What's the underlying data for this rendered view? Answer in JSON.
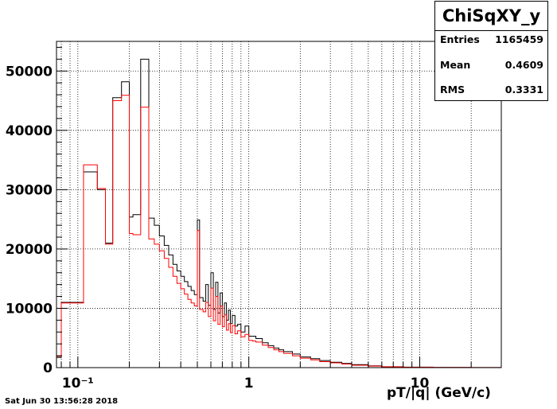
{
  "stats": {
    "title": "ChiSqXY_y",
    "rows": [
      {
        "label": "Entries",
        "value": "1165459"
      },
      {
        "label": "Mean",
        "value": "0.4609"
      },
      {
        "label": "RMS",
        "value": "0.3331"
      }
    ]
  },
  "footer_text": "Sat Jun 30 13:56:28 2018",
  "chart_data": {
    "type": "line",
    "xlabel": "pT/|q| (GeV/c)",
    "ylabel": "",
    "xscale": "log",
    "xlim": [
      0.075,
      30
    ],
    "ylim": [
      0,
      55000
    ],
    "yticks": [
      0,
      10000,
      20000,
      30000,
      40000,
      50000
    ],
    "ytick_labels": [
      "0",
      "10000",
      "20000",
      "30000",
      "40000",
      "50000"
    ],
    "xticks": [
      0.1,
      1,
      10
    ],
    "xtick_labels": [
      "10⁻¹",
      "1",
      "10"
    ],
    "grid": true,
    "series": [
      {
        "color": "#000000",
        "points": [
          [
            0.075,
            1700
          ],
          [
            0.08,
            11000
          ],
          [
            0.1,
            11000
          ],
          [
            0.108,
            33000
          ],
          [
            0.12,
            33000
          ],
          [
            0.13,
            30000
          ],
          [
            0.14,
            30000
          ],
          [
            0.145,
            21000
          ],
          [
            0.15,
            21000
          ],
          [
            0.16,
            45500
          ],
          [
            0.175,
            45500
          ],
          [
            0.18,
            48200
          ],
          [
            0.195,
            48200
          ],
          [
            0.2,
            25400
          ],
          [
            0.21,
            25800
          ],
          [
            0.22,
            25800
          ],
          [
            0.233,
            52000
          ],
          [
            0.25,
            52000
          ],
          [
            0.26,
            25200
          ],
          [
            0.28,
            24000
          ],
          [
            0.3,
            22200
          ],
          [
            0.32,
            20600
          ],
          [
            0.34,
            19000
          ],
          [
            0.36,
            17400
          ],
          [
            0.38,
            16300
          ],
          [
            0.4,
            15400
          ],
          [
            0.42,
            14500
          ],
          [
            0.44,
            13700
          ],
          [
            0.46,
            13000
          ],
          [
            0.48,
            12300
          ],
          [
            0.5,
            24900
          ],
          [
            0.515,
            11800
          ],
          [
            0.54,
            11200
          ],
          [
            0.56,
            14000
          ],
          [
            0.58,
            10500
          ],
          [
            0.6,
            16000
          ],
          [
            0.62,
            9800
          ],
          [
            0.64,
            14400
          ],
          [
            0.66,
            9200
          ],
          [
            0.68,
            12600
          ],
          [
            0.7,
            8600
          ],
          [
            0.72,
            10900
          ],
          [
            0.74,
            8000
          ],
          [
            0.76,
            9700
          ],
          [
            0.78,
            7400
          ],
          [
            0.8,
            8800
          ],
          [
            0.83,
            7000
          ],
          [
            0.86,
            7300
          ],
          [
            0.9,
            6000
          ],
          [
            0.95,
            7000
          ],
          [
            1.0,
            5300
          ],
          [
            1.05,
            5300
          ],
          [
            1.1,
            4900
          ],
          [
            1.2,
            4200
          ],
          [
            1.3,
            3700
          ],
          [
            1.4,
            3300
          ],
          [
            1.5,
            3000
          ],
          [
            1.6,
            2700
          ],
          [
            1.8,
            2300
          ],
          [
            2.0,
            1800
          ],
          [
            2.3,
            1500
          ],
          [
            2.6,
            1200
          ],
          [
            3.0,
            900
          ],
          [
            3.5,
            700
          ],
          [
            4.0,
            500
          ],
          [
            5.0,
            300
          ],
          [
            6.0,
            150
          ],
          [
            8.0,
            80
          ],
          [
            12.0,
            40
          ],
          [
            20.0,
            10
          ],
          [
            30.0,
            0
          ]
        ]
      },
      {
        "color": "#ff0000",
        "points": [
          [
            0.075,
            1900
          ],
          [
            0.08,
            10900
          ],
          [
            0.1,
            10900
          ],
          [
            0.108,
            34200
          ],
          [
            0.12,
            34200
          ],
          [
            0.13,
            30200
          ],
          [
            0.14,
            30200
          ],
          [
            0.145,
            20800
          ],
          [
            0.15,
            20800
          ],
          [
            0.16,
            45000
          ],
          [
            0.175,
            45000
          ],
          [
            0.18,
            45900
          ],
          [
            0.195,
            45900
          ],
          [
            0.2,
            22600
          ],
          [
            0.21,
            22400
          ],
          [
            0.22,
            22400
          ],
          [
            0.233,
            43900
          ],
          [
            0.25,
            43900
          ],
          [
            0.26,
            21700
          ],
          [
            0.28,
            20800
          ],
          [
            0.3,
            19700
          ],
          [
            0.32,
            18400
          ],
          [
            0.34,
            16900
          ],
          [
            0.36,
            15400
          ],
          [
            0.38,
            14200
          ],
          [
            0.4,
            13300
          ],
          [
            0.42,
            12400
          ],
          [
            0.44,
            11500
          ],
          [
            0.46,
            10900
          ],
          [
            0.48,
            10400
          ],
          [
            0.5,
            23100
          ],
          [
            0.515,
            9800
          ],
          [
            0.54,
            9400
          ],
          [
            0.56,
            11000
          ],
          [
            0.58,
            8600
          ],
          [
            0.6,
            13400
          ],
          [
            0.62,
            7900
          ],
          [
            0.64,
            12000
          ],
          [
            0.66,
            7300
          ],
          [
            0.68,
            10400
          ],
          [
            0.7,
            6900
          ],
          [
            0.72,
            8900
          ],
          [
            0.74,
            6300
          ],
          [
            0.76,
            7400
          ],
          [
            0.78,
            5900
          ],
          [
            0.8,
            7100
          ],
          [
            0.83,
            5700
          ],
          [
            0.86,
            6200
          ],
          [
            0.9,
            5200
          ],
          [
            0.95,
            5600
          ],
          [
            1.0,
            4600
          ],
          [
            1.05,
            4500
          ],
          [
            1.1,
            4300
          ],
          [
            1.2,
            3800
          ],
          [
            1.3,
            3400
          ],
          [
            1.4,
            3000
          ],
          [
            1.5,
            2700
          ],
          [
            1.6,
            2400
          ],
          [
            1.8,
            2000
          ],
          [
            2.0,
            1600
          ],
          [
            2.3,
            1300
          ],
          [
            2.6,
            1000
          ],
          [
            3.0,
            800
          ],
          [
            3.5,
            600
          ],
          [
            4.0,
            400
          ],
          [
            5.0,
            250
          ],
          [
            6.0,
            130
          ],
          [
            8.0,
            70
          ],
          [
            12.0,
            30
          ],
          [
            20.0,
            8
          ],
          [
            30.0,
            0
          ]
        ]
      }
    ]
  }
}
